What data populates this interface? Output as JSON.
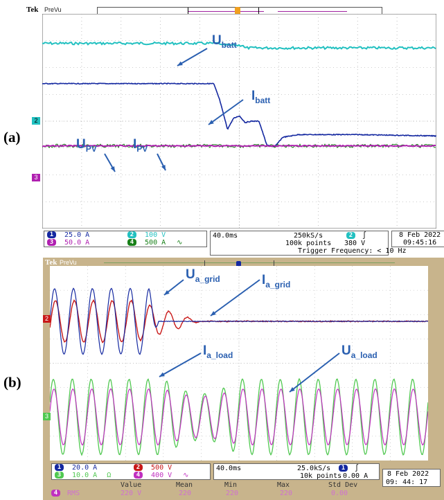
{
  "colors": {
    "ch1": "#1428a0",
    "ch2_a": "#22c0c0",
    "ch2_b": "#c81818",
    "ch3": "#b020b0",
    "ch3_b": "#50c850",
    "ch4": "#188018",
    "ch4_b": "#c030c0",
    "grid_a": "#9a9a9a",
    "screen_b_bg": "#c8b48c",
    "label_blue": "#2a5fb0"
  },
  "panel_a": {
    "label": "(a)",
    "brand": "Tek",
    "mode": "PreVu",
    "annotations": {
      "u_batt": {
        "main": "U",
        "sub": "batt"
      },
      "i_batt": {
        "main": "I",
        "sub": "batt"
      },
      "u_pv": {
        "main": "U",
        "sub": "PV"
      },
      "i_pv": {
        "main": "I",
        "sub": "PV"
      }
    },
    "markers": {
      "ch2": "2",
      "ch3": "3"
    },
    "channels": [
      {
        "num": "1",
        "scale": "25.0 A"
      },
      {
        "num": "2",
        "scale": "100 V"
      },
      {
        "num": "3",
        "scale": "50.0 A"
      },
      {
        "num": "4",
        "scale": "500 A",
        "coupling": "∿"
      }
    ],
    "timebase": "40.0ms",
    "sample_rate": "250kS/s",
    "record_length": "100k points",
    "trigger_channel": "2",
    "trigger_slope": "∫",
    "trigger_level": "380 V",
    "trigger_frequency": "Trigger Frequency: < 10 Hz",
    "date": "8 Feb  2022",
    "time": "09:45:16"
  },
  "panel_b": {
    "label": "(b)",
    "brand": "Tek",
    "mode": "PreVu",
    "annotations": {
      "u_a_grid": {
        "main": "U",
        "sub": "a_grid"
      },
      "i_a_grid": {
        "main": "I",
        "sub": "a_grid"
      },
      "i_a_load": {
        "main": "I",
        "sub": "a_load"
      },
      "u_a_load": {
        "main": "U",
        "sub": "a_load"
      }
    },
    "markers": {
      "ch2": "2",
      "ch3": "3"
    },
    "channels": [
      {
        "num": "1",
        "scale": "20.0 A"
      },
      {
        "num": "2",
        "scale": "500 V"
      },
      {
        "num": "3",
        "scale": "10.0 A",
        "coupling": "Ω"
      },
      {
        "num": "4",
        "scale": "400 V",
        "coupling": "∿"
      }
    ],
    "timebase": "40.0ms",
    "sample_rate": "25.0kS/s",
    "record_length": "10k points",
    "trigger_channel": "1",
    "trigger_slope": "∫",
    "trigger_level": "0.00 A",
    "date": "8 Feb    2022",
    "time": "09: 44: 17",
    "measurement": {
      "headers": [
        "Value",
        "Mean",
        "Min",
        "Max",
        "Std Dev"
      ],
      "channel": "4",
      "type": "RMS",
      "values": [
        "220 V",
        "220",
        "220",
        "220",
        "0.00"
      ]
    }
  },
  "chart_data": [
    {
      "type": "line",
      "title": "",
      "description_source": "oscilloscope capture (a), 40.0 ms/div",
      "x": {
        "unit": "ms",
        "range": [
          -200,
          200
        ]
      },
      "series": [
        {
          "name": "U_batt",
          "channel": 2,
          "shape": "flat ~2.9 div, small step down ~0.15 div after t=0",
          "level_before_div": 2.9,
          "level_after_div": 2.75
        },
        {
          "name": "I_batt",
          "channel": 1,
          "shape": "flat 1.4 div, drops at -15 ms with damped ring, second drop at +4 ms with recovery",
          "points_ms_div": [
            [
              -200,
              1.4
            ],
            [
              -26,
              1.4
            ],
            [
              -20,
              0.8
            ],
            [
              -12,
              -0.3
            ],
            [
              -6,
              0.1
            ],
            [
              0,
              0.2
            ],
            [
              6,
              -0.05
            ],
            [
              12,
              0.0
            ],
            [
              20,
              0.0
            ],
            [
              28,
              -0.9
            ],
            [
              36,
              -0.95
            ],
            [
              44,
              -0.6
            ],
            [
              60,
              -0.5
            ],
            [
              120,
              -0.5
            ],
            [
              200,
              -0.55
            ]
          ]
        },
        {
          "name": "I_PV",
          "channel": 4,
          "shape": "flat noise near -0.9 div"
        },
        {
          "name": "U_PV",
          "channel": 3,
          "shape": "flat near -0.9 div"
        }
      ]
    },
    {
      "type": "line",
      "title": "",
      "description_source": "oscilloscope capture (b), 40.0 ms/div",
      "x": {
        "unit": "ms",
        "range": [
          -200,
          200
        ]
      },
      "series": [
        {
          "name": "U_a_grid",
          "channel": 1,
          "shape": "sinusoid amplitude ~1.3 div until ~-90 ms then flat 0"
        },
        {
          "name": "I_a_grid",
          "channel": 2,
          "shape": "sinusoid amplitude ~0.9 div decaying to 0 by ~-50 ms"
        },
        {
          "name": "I_a_load",
          "channel": 3,
          "shape": "sinusoid amplitude ~1.5 div with dip around t=0"
        },
        {
          "name": "U_a_load",
          "channel": 4,
          "shape": "sinusoid amplitude ~1.2 div, 220 V RMS"
        }
      ]
    }
  ]
}
